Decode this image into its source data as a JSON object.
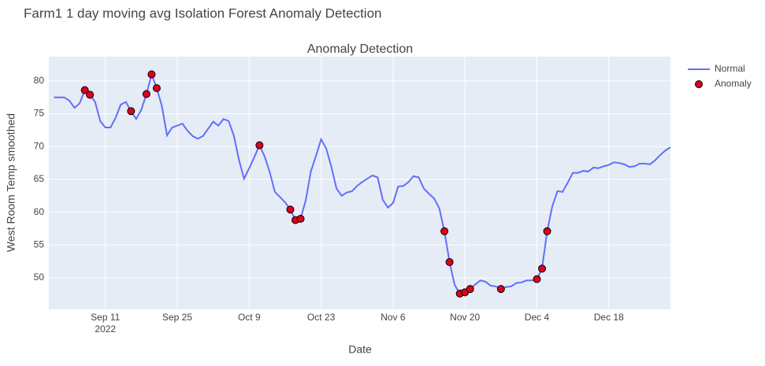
{
  "chart_data": {
    "type": "line",
    "page_title": "Farm1 1 day moving avg Isolation Forest Anomaly Detection",
    "title": "Anomaly Detection",
    "x_label": "Date",
    "y_label": "West Room Temp smoothed",
    "xlim": [
      "2022-08-31",
      "2022-12-30"
    ],
    "ylim": [
      45.2,
      83.7
    ],
    "xticks": [
      {
        "value": "2022-09-11",
        "label": "Sep 11",
        "sublabel": "2022"
      },
      {
        "value": "2022-09-25",
        "label": "Sep 25"
      },
      {
        "value": "2022-10-09",
        "label": "Oct 9"
      },
      {
        "value": "2022-10-23",
        "label": "Oct 23"
      },
      {
        "value": "2022-11-06",
        "label": "Nov 6"
      },
      {
        "value": "2022-11-20",
        "label": "Nov 20"
      },
      {
        "value": "2022-12-04",
        "label": "Dec 4"
      },
      {
        "value": "2022-12-18",
        "label": "Dec 18"
      }
    ],
    "yticks": [
      50,
      55,
      60,
      65,
      70,
      75,
      80
    ],
    "grid": true,
    "legend": "top-right",
    "series": [
      {
        "name": "Normal",
        "mode": "line",
        "color": "#636efa",
        "x": [
          "2022-09-01",
          "2022-09-02",
          "2022-09-03",
          "2022-09-04",
          "2022-09-05",
          "2022-09-06",
          "2022-09-07",
          "2022-09-08",
          "2022-09-09",
          "2022-09-10",
          "2022-09-11",
          "2022-09-12",
          "2022-09-13",
          "2022-09-14",
          "2022-09-15",
          "2022-09-16",
          "2022-09-17",
          "2022-09-18",
          "2022-09-19",
          "2022-09-20",
          "2022-09-21",
          "2022-09-22",
          "2022-09-23",
          "2022-09-24",
          "2022-09-25",
          "2022-09-26",
          "2022-09-27",
          "2022-09-28",
          "2022-09-29",
          "2022-09-30",
          "2022-10-01",
          "2022-10-02",
          "2022-10-03",
          "2022-10-04",
          "2022-10-05",
          "2022-10-06",
          "2022-10-07",
          "2022-10-08",
          "2022-10-09",
          "2022-10-10",
          "2022-10-11",
          "2022-10-12",
          "2022-10-13",
          "2022-10-14",
          "2022-10-15",
          "2022-10-16",
          "2022-10-17",
          "2022-10-18",
          "2022-10-19",
          "2022-10-20",
          "2022-10-21",
          "2022-10-22",
          "2022-10-23",
          "2022-10-24",
          "2022-10-25",
          "2022-10-26",
          "2022-10-27",
          "2022-10-28",
          "2022-10-29",
          "2022-10-30",
          "2022-10-31",
          "2022-11-01",
          "2022-11-02",
          "2022-11-03",
          "2022-11-04",
          "2022-11-05",
          "2022-11-06",
          "2022-11-07",
          "2022-11-08",
          "2022-11-09",
          "2022-11-10",
          "2022-11-11",
          "2022-11-12",
          "2022-11-13",
          "2022-11-14",
          "2022-11-15",
          "2022-11-16",
          "2022-11-17",
          "2022-11-18",
          "2022-11-19",
          "2022-11-20",
          "2022-11-21",
          "2022-11-22",
          "2022-11-23",
          "2022-11-24",
          "2022-11-25",
          "2022-11-26",
          "2022-11-27",
          "2022-11-28",
          "2022-11-29",
          "2022-11-30",
          "2022-12-01",
          "2022-12-02",
          "2022-12-03",
          "2022-12-04",
          "2022-12-05",
          "2022-12-06",
          "2022-12-07",
          "2022-12-08",
          "2022-12-09",
          "2022-12-10",
          "2022-12-11",
          "2022-12-12",
          "2022-12-13",
          "2022-12-14",
          "2022-12-15",
          "2022-12-16",
          "2022-12-17",
          "2022-12-18",
          "2022-12-19",
          "2022-12-20",
          "2022-12-21",
          "2022-12-22",
          "2022-12-23",
          "2022-12-24",
          "2022-12-25",
          "2022-12-26",
          "2022-12-27",
          "2022-12-28",
          "2022-12-29",
          "2022-12-30"
        ],
        "values": [
          77.5,
          77.5,
          77.5,
          77,
          75.9,
          76.6,
          78.6,
          77.9,
          76.8,
          73.9,
          72.9,
          72.9,
          74.4,
          76.4,
          76.8,
          75.4,
          74.2,
          75.6,
          78,
          81,
          78.9,
          76.2,
          71.7,
          72.9,
          73.2,
          73.5,
          72.4,
          71.6,
          71.2,
          71.6,
          72.7,
          73.8,
          73.2,
          74.2,
          73.9,
          71.7,
          68,
          65.1,
          66.7,
          68.4,
          70.2,
          68.5,
          66.1,
          63.1,
          62.3,
          61.5,
          60.4,
          58.8,
          59,
          61.8,
          66.2,
          68.6,
          71.1,
          69.7,
          66.9,
          63.6,
          62.5,
          63,
          63.2,
          64,
          64.6,
          65.1,
          65.6,
          65.3,
          61.9,
          60.7,
          61.4,
          63.9,
          64,
          64.6,
          65.5,
          65.3,
          63.6,
          62.8,
          62.1,
          60.6,
          57.1,
          52.4,
          48.9,
          47.6,
          47.8,
          48.3,
          49,
          49.6,
          49.4,
          48.8,
          48.7,
          48.3,
          48.6,
          48.7,
          49.2,
          49.3,
          49.6,
          49.6,
          49.8,
          51.4,
          57.1,
          60.9,
          63.2,
          63.1,
          64.5,
          66,
          66,
          66.3,
          66.2,
          66.8,
          66.7,
          67,
          67.2,
          67.6,
          67.5,
          67.3,
          66.9,
          67,
          67.4,
          67.4,
          67.3,
          67.9,
          68.7,
          69.4,
          69.9
        ]
      },
      {
        "name": "Anomaly",
        "mode": "markers",
        "color": "#e0001b",
        "edge_color": "#000000",
        "x": [
          "2022-09-07",
          "2022-09-08",
          "2022-09-16",
          "2022-09-19",
          "2022-09-20",
          "2022-09-21",
          "2022-10-11",
          "2022-10-17",
          "2022-10-18",
          "2022-10-19",
          "2022-11-16",
          "2022-11-17",
          "2022-11-19",
          "2022-11-20",
          "2022-11-21",
          "2022-11-27",
          "2022-12-04",
          "2022-12-05",
          "2022-12-06"
        ],
        "values": [
          78.6,
          77.9,
          75.4,
          78,
          81,
          78.9,
          70.2,
          60.4,
          58.8,
          59,
          57.1,
          52.4,
          47.6,
          47.8,
          48.3,
          48.3,
          49.8,
          51.4,
          57.1
        ]
      }
    ]
  }
}
